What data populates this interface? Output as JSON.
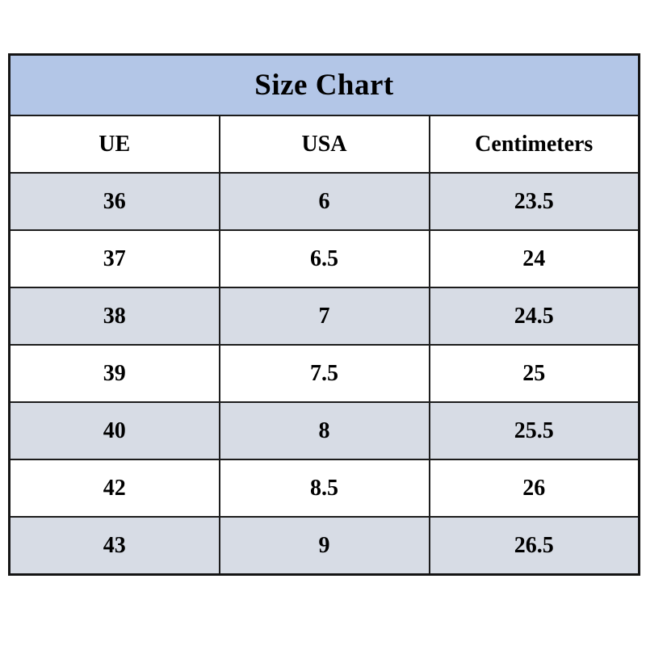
{
  "title": "Size Chart",
  "table": {
    "headers": [
      "UE",
      "USA",
      "Centimeters"
    ],
    "rows": [
      [
        "36",
        "6",
        "23.5"
      ],
      [
        "37",
        "6.5",
        "24"
      ],
      [
        "38",
        "7",
        "24.5"
      ],
      [
        "39",
        "7.5",
        "25"
      ],
      [
        "40",
        "8",
        "25.5"
      ],
      [
        "42",
        "8.5",
        "26"
      ],
      [
        "43",
        "9",
        "26.5"
      ]
    ]
  },
  "colors": {
    "title_background": "#b3c6e7",
    "alt_row_background": "#d7dce5",
    "row_background": "#ffffff",
    "border": "#1c1c1c",
    "text": "#000000"
  },
  "chart_data": {
    "type": "table",
    "title": "Size Chart",
    "columns": [
      "UE",
      "USA",
      "Centimeters"
    ],
    "rows": [
      [
        36,
        6,
        23.5
      ],
      [
        37,
        6.5,
        24
      ],
      [
        38,
        7,
        24.5
      ],
      [
        39,
        7.5,
        25
      ],
      [
        40,
        8,
        25.5
      ],
      [
        42,
        8.5,
        26
      ],
      [
        43,
        9,
        26.5
      ]
    ],
    "layout": {
      "striped": true,
      "first_data_row_shaded": true,
      "columns_equal_width": true
    }
  }
}
